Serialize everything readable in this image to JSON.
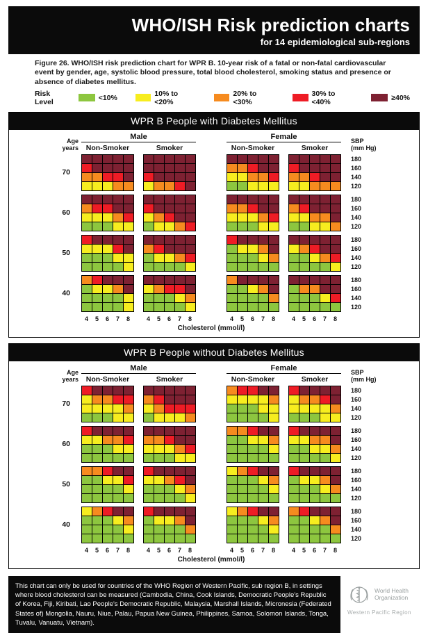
{
  "header": {
    "title": "WHO/ISH Risk prediction charts",
    "subtitle": "for 14 epidemiological sub-regions"
  },
  "caption": "Figure 26. WHO/ISH risk prediction chart for WPR B. 10-year risk of a fatal or non-fatal cardiovascular event by gender, age, systolic blood pressure, total blood cholesterol, smoking status and presence or absence of diabetes mellitus.",
  "legend": {
    "label": "Risk Level",
    "items": [
      {
        "label": "<10%",
        "color": "#8dc63f"
      },
      {
        "label": "10% to <20%",
        "color": "#f7ed1f"
      },
      {
        "label": "20% to <30%",
        "color": "#f68b1f"
      },
      {
        "label": "30% to <40%",
        "color": "#ee1c25"
      },
      {
        "label": "≥40%",
        "color": "#7e2132"
      }
    ]
  },
  "labels": {
    "age_line1": "Age",
    "age_line2": "years",
    "male": "Male",
    "female": "Female",
    "non_smoker": "Non-Smoker",
    "smoker": "Smoker",
    "sbp_line1": "SBP",
    "sbp_line2": "(mm Hg)",
    "cholesterol_axis": "Cholesterol (mmol/l)"
  },
  "chart_data": {
    "type": "heatmap",
    "title": "WHO/ISH risk prediction chart for WPR B: 10-year cardiovascular risk",
    "x": {
      "label": "Cholesterol (mmol/l)",
      "values": [
        "4",
        "5",
        "6",
        "7",
        "8"
      ]
    },
    "y": {
      "label": "SBP (mm Hg)",
      "values": [
        "180",
        "160",
        "140",
        "120"
      ]
    },
    "ages": [
      "70",
      "60",
      "50",
      "40"
    ],
    "groups": [
      "Male Non-Smoker",
      "Male Smoker",
      "Female Non-Smoker",
      "Female Smoker"
    ],
    "risk_levels": {
      "G": "<10%",
      "Y": "10% to <20%",
      "O": "20% to <30%",
      "R": "30% to <40%",
      "D": "≥40%"
    },
    "colors": {
      "G": "#8dc63f",
      "Y": "#f7ed1f",
      "O": "#f68b1f",
      "R": "#ee1c25",
      "D": "#7e2132"
    },
    "panels": [
      {
        "title": "WPR B People with Diabetes Mellitus",
        "rows": [
          {
            "age": "70",
            "grids": [
              [
                "DDDDD",
                "RDDDD",
                "OORRD",
                "YYYOO"
              ],
              [
                "DDDDD",
                "DDDDD",
                "RDDDD",
                "YOORD"
              ],
              [
                "DDDDD",
                "OORDD",
                "YYOOR",
                "GGYYY"
              ],
              [
                "DDDDD",
                "RDDDD",
                "OORDD",
                "YYOOO"
              ]
            ]
          },
          {
            "age": "60",
            "grids": [
              [
                "DDDDD",
                "ORRDD",
                "YYYOR",
                "GGGYY"
              ],
              [
                "DDDDD",
                "RDDDD",
                "YORDD",
                "GYYOR"
              ],
              [
                "DDDDD",
                "OORDD",
                "YYYOR",
                "GGGYY"
              ],
              [
                "DDDDD",
                "ORDDD",
                "YYOOD",
                "GGYYO"
              ]
            ]
          },
          {
            "age": "50",
            "grids": [
              [
                "RDDDD",
                "YYYRD",
                "GGGYY",
                "GGGGY"
              ],
              [
                "DDDDD",
                "ORDDD",
                "GYYOR",
                "GGGGY"
              ],
              [
                "RDDDD",
                "GYYOD",
                "GGGYO",
                "GGGGG"
              ],
              [
                "DDDDD",
                "YORDD",
                "GGYOR",
                "GGGGY"
              ]
            ]
          },
          {
            "age": "40",
            "grids": [
              [
                "ORDDD",
                "GYYOD",
                "GGGGY",
                "GGGGY"
              ],
              [
                "DDDDD",
                "YORRD",
                "GGGYO",
                "GGGGY"
              ],
              [
                "ODDDD",
                "GGYOD",
                "GGGGO",
                "GGGGG"
              ],
              [
                "DDDDD",
                "GOODD",
                "GGGYR",
                "GGGGG"
              ]
            ]
          }
        ]
      },
      {
        "title": "WPR B People without Diabetes Mellitus",
        "rows": [
          {
            "age": "70",
            "grids": [
              [
                "RDDDD",
                "YOORR",
                "YYYYO",
                "GGGYY"
              ],
              [
                "DDDDD",
                "ORDDD",
                "YORRR",
                "GYYYO"
              ],
              [
                "ORRDD",
                "YYYYO",
                "GGGYY",
                "GGGGY"
              ],
              [
                "RDDDD",
                "YOORD",
                "YYYYO",
                "GGGYY"
              ]
            ]
          },
          {
            "age": "60",
            "grids": [
              [
                "RDDDD",
                "YYOOR",
                "GGGYY",
                "GGGGG"
              ],
              [
                "DDDDD",
                "OORDD",
                "YYYOR",
                "GGGYY"
              ],
              [
                "OORDD",
                "GGYYO",
                "GGGGY",
                "GGGGG"
              ],
              [
                "RDDDD",
                "YYOOD",
                "GGYYO",
                "GGGGY"
              ]
            ]
          },
          {
            "age": "50",
            "grids": [
              [
                "OORDD",
                "GGYYR",
                "GGGGY",
                "GGGGG"
              ],
              [
                "RDDDD",
                "YYORD",
                "GGGYO",
                "GGGGY"
              ],
              [
                "YORDD",
                "GGGYO",
                "GGGGY",
                "GGGGG"
              ],
              [
                "RDDDD",
                "GYYOD",
                "GGGYO",
                "GGGGG"
              ]
            ]
          },
          {
            "age": "40",
            "grids": [
              [
                "YORDD",
                "GGGYO",
                "GGGGY",
                "GGGGG"
              ],
              [
                "RDDDD",
                "GYYOD",
                "GGGGO",
                "GGGGG"
              ],
              [
                "YORDD",
                "GGGYO",
                "GGGGY",
                "GGGGG"
              ],
              [
                "ORDDD",
                "GGYOD",
                "GGGGO",
                "GGGGG"
              ]
            ]
          }
        ]
      }
    ]
  },
  "footer": {
    "note": "This chart can only be used for countries of the WHO Region of Western Pacific, sub region B, in settings where blood cholesterol can be measured (Cambodia, China, Cook Islands, Democratic People's Republic of Korea, Fiji, Kiribati, Lao People's Democratic Republic, Malaysia, Marshall Islands, Micronesia (Federated States of) Mongolia, Nauru, Niue, Palau, Papua New Guinea, Philippines, Samoa, Solomon Islands, Tonga, Tuvalu, Vanuatu, Vietnam).",
    "logo": {
      "org_line1": "World Health",
      "org_line2": "Organization",
      "region": "Western Pacific Region"
    }
  }
}
